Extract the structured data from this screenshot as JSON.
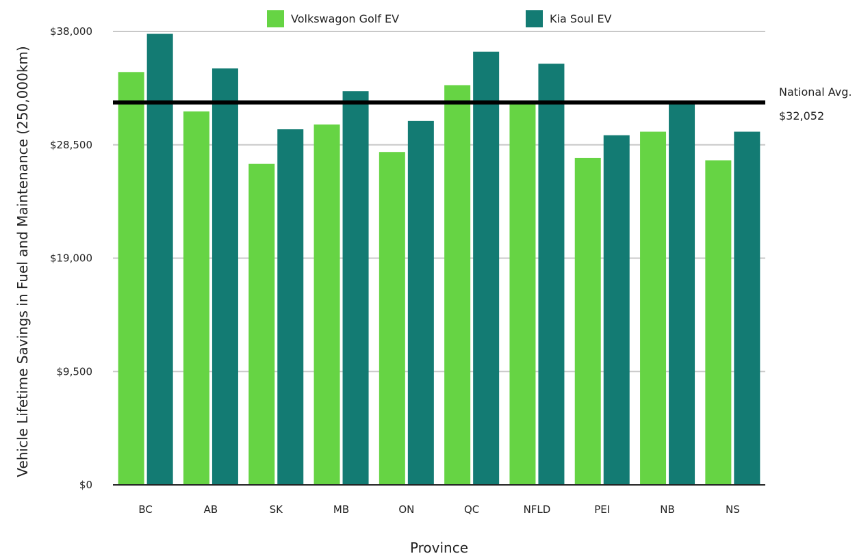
{
  "chart_data": {
    "type": "bar",
    "title": "",
    "xlabel": "Province",
    "ylabel": "Vehicle Lifetime Savings in Fuel and Maintenance (250,000km)",
    "categories": [
      "BC",
      "AB",
      "SK",
      "MB",
      "ON",
      "QC",
      "NFLD",
      "PEI",
      "NB",
      "NS"
    ],
    "series": [
      {
        "name": "Volkswagon Golf EV",
        "color": "#66d444",
        "values": [
          34600,
          31300,
          26900,
          30200,
          27900,
          33500,
          32200,
          27400,
          29600,
          27200
        ]
      },
      {
        "name": "Kia Soul EV",
        "color": "#137b73",
        "values": [
          37800,
          34900,
          29800,
          33000,
          30500,
          36300,
          35300,
          29300,
          32000,
          29600
        ]
      }
    ],
    "ylim": [
      0,
      38000
    ],
    "yticks": [
      0,
      9500,
      19000,
      28500,
      38000
    ],
    "ytick_labels": [
      "$0",
      "$9,500",
      "$19,000",
      "$28,500",
      "$38,000"
    ],
    "grid": true,
    "legend": "top-center",
    "reference_line": {
      "value": 32052,
      "label": "National Avg.",
      "value_label": "$32,052",
      "color": "#000000"
    }
  }
}
